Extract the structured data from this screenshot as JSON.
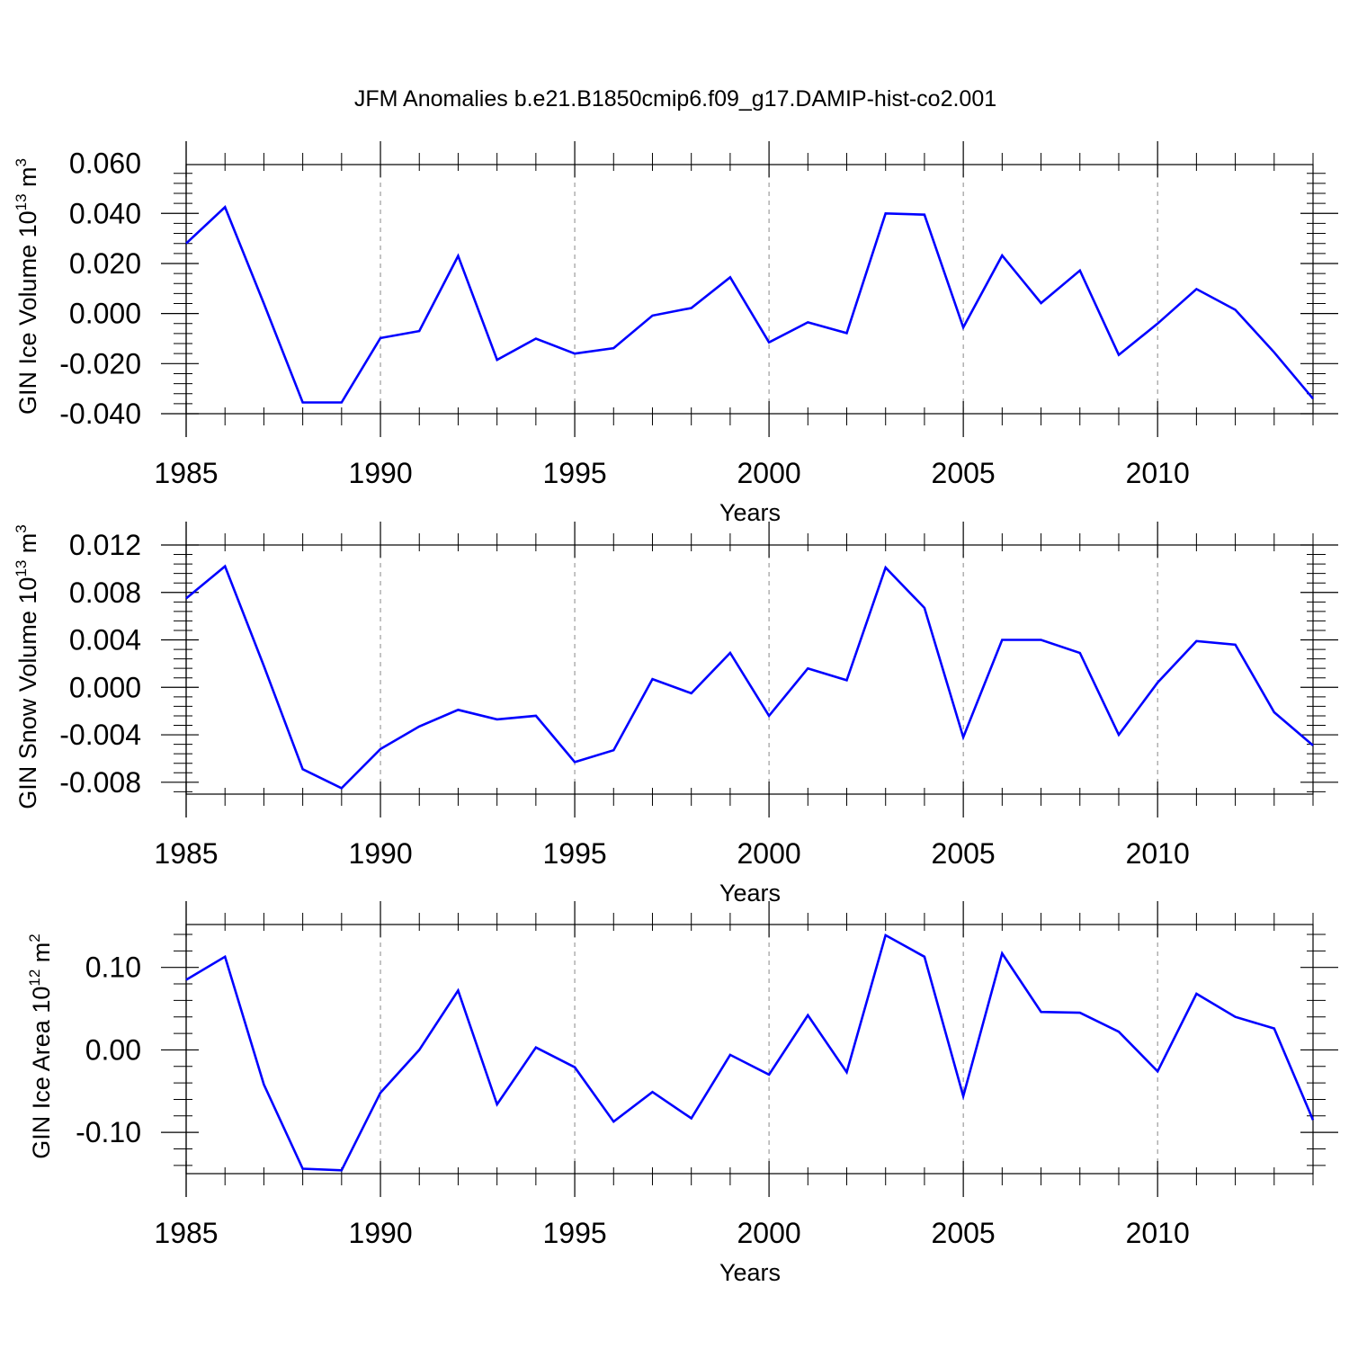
{
  "title": "JFM Anomalies b.e21.B1850cmip6.f09_g17.DAMIP-hist-co2.001",
  "line_color": "#0000ff",
  "chart_data": [
    {
      "type": "line",
      "ylabel": {
        "text": "GIN Ice Volume 10",
        "sup": "13",
        "unit": " m",
        "unit_sup": "3"
      },
      "xlabel": "Years",
      "x": [
        1985,
        1986,
        1987,
        1988,
        1989,
        1990,
        1991,
        1992,
        1993,
        1994,
        1995,
        1996,
        1997,
        1998,
        1999,
        2000,
        2001,
        2002,
        2003,
        2004,
        2005,
        2006,
        2007,
        2008,
        2009,
        2010,
        2011,
        2012,
        2013,
        2014
      ],
      "values": [
        0.028,
        0.0425,
        0.004,
        -0.0355,
        -0.0355,
        -0.0098,
        -0.007,
        0.023,
        -0.0185,
        -0.01,
        -0.016,
        -0.0138,
        -0.0008,
        0.0022,
        0.0145,
        -0.0115,
        -0.0035,
        -0.0078,
        0.04,
        0.0395,
        -0.0055,
        0.0232,
        0.0042,
        0.0172,
        -0.0165,
        -0.004,
        0.0098,
        0.0015,
        -0.0155,
        -0.034
      ],
      "xlim": [
        1985,
        2014
      ],
      "ylim": [
        -0.04,
        0.0595
      ],
      "yticks": [
        0.06,
        0.04,
        0.02,
        0.0,
        -0.02,
        -0.04
      ],
      "ytick_labels": [
        "0.060",
        "0.040",
        "0.020",
        "0.000",
        "-0.020",
        "-0.040"
      ],
      "xticks": [
        1985,
        1990,
        1995,
        2000,
        2005,
        2010
      ],
      "xtick_labels": [
        "1985",
        "1990",
        "1995",
        "2000",
        "2005",
        "2010"
      ]
    },
    {
      "type": "line",
      "ylabel": {
        "text": "GIN Snow Volume 10",
        "sup": "13",
        "unit": " m",
        "unit_sup": "3"
      },
      "xlabel": "Years",
      "x": [
        1985,
        1986,
        1987,
        1988,
        1989,
        1990,
        1991,
        1992,
        1993,
        1994,
        1995,
        1996,
        1997,
        1998,
        1999,
        2000,
        2001,
        2002,
        2003,
        2004,
        2005,
        2006,
        2007,
        2008,
        2009,
        2010,
        2011,
        2012,
        2013,
        2014
      ],
      "values": [
        0.0075,
        0.0102,
        0.0018,
        -0.0069,
        -0.0085,
        -0.0052,
        -0.0033,
        -0.0019,
        -0.0027,
        -0.0024,
        -0.0063,
        -0.0053,
        0.0007,
        -0.0005,
        0.0029,
        -0.0024,
        0.0016,
        0.0006,
        0.0101,
        0.0067,
        -0.0042,
        0.004,
        0.004,
        0.0029,
        -0.004,
        0.0004,
        0.0039,
        0.0036,
        -0.0021,
        -0.0049
      ],
      "xlim": [
        1985,
        2014
      ],
      "ylim": [
        -0.009,
        0.012
      ],
      "yticks": [
        0.012,
        0.008,
        0.004,
        0.0,
        -0.004,
        -0.008
      ],
      "ytick_labels": [
        "0.012",
        "0.008",
        "0.004",
        "0.000",
        "-0.004",
        "-0.008"
      ],
      "xticks": [
        1985,
        1990,
        1995,
        2000,
        2005,
        2010
      ],
      "xtick_labels": [
        "1985",
        "1990",
        "1995",
        "2000",
        "2005",
        "2010"
      ]
    },
    {
      "type": "line",
      "ylabel": {
        "text": "GIN Ice Area 10",
        "sup": "12",
        "unit": " m",
        "unit_sup": "2"
      },
      "xlabel": "Years",
      "x": [
        1985,
        1986,
        1987,
        1988,
        1989,
        1990,
        1991,
        1992,
        1993,
        1994,
        1995,
        1996,
        1997,
        1998,
        1999,
        2000,
        2001,
        2002,
        2003,
        2004,
        2005,
        2006,
        2007,
        2008,
        2009,
        2010,
        2011,
        2012,
        2013,
        2014
      ],
      "values": [
        0.085,
        0.113,
        -0.042,
        -0.144,
        -0.146,
        -0.052,
        0.0,
        0.072,
        -0.066,
        0.003,
        -0.021,
        -0.087,
        -0.051,
        -0.083,
        -0.006,
        -0.03,
        0.042,
        -0.027,
        0.139,
        0.113,
        -0.056,
        0.117,
        0.046,
        0.045,
        0.022,
        -0.026,
        0.068,
        0.04,
        0.026,
        -0.085
      ],
      "xlim": [
        1985,
        2014
      ],
      "ylim": [
        -0.15,
        0.152
      ],
      "yticks": [
        0.1,
        0.0,
        -0.1
      ],
      "ytick_labels": [
        "0.10",
        "0.00",
        "-0.10"
      ],
      "xticks": [
        1985,
        1990,
        1995,
        2000,
        2005,
        2010
      ],
      "xtick_labels": [
        "1985",
        "1990",
        "1995",
        "2000",
        "2005",
        "2010"
      ]
    }
  ]
}
